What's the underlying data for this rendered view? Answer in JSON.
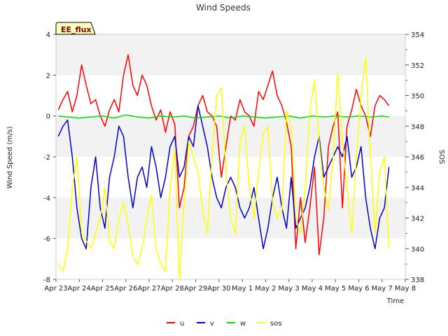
{
  "chart_data": {
    "type": "line",
    "title": "Wind Speeds",
    "badge": "EE_flux",
    "xlabel": "Time",
    "ylabel": "Wind Speed (m/s)",
    "y2label": "SOS",
    "x_tick_labels": [
      "Apr 23",
      "Apr 24",
      "Apr 25",
      "Apr 26",
      "Apr 27",
      "Apr 28",
      "Apr 29",
      "Apr 30",
      "May 1",
      "May 2",
      "May 3",
      "May 4",
      "May 5",
      "May 6",
      "May 7",
      "May 8"
    ],
    "xlim_days": [
      0,
      15
    ],
    "ylim": [
      -8,
      4
    ],
    "y_ticks": [
      4,
      2,
      0,
      -2,
      -4,
      -6,
      -8
    ],
    "y2lim": [
      338,
      354
    ],
    "y2_ticks": [
      354,
      352,
      350,
      348,
      346,
      344,
      342,
      340,
      338
    ],
    "grid_bands": true,
    "legend_position": "bottom-center",
    "series": [
      {
        "name": "u",
        "color": "#ff0000",
        "axis": "left",
        "x": [
          0.1,
          0.3,
          0.5,
          0.7,
          0.9,
          1.1,
          1.3,
          1.5,
          1.7,
          1.9,
          2.1,
          2.3,
          2.5,
          2.7,
          2.9,
          3.1,
          3.3,
          3.5,
          3.7,
          3.9,
          4.1,
          4.3,
          4.5,
          4.7,
          4.9,
          5.1,
          5.3,
          5.5,
          5.7,
          5.9,
          6.1,
          6.3,
          6.5,
          6.7,
          6.9,
          7.1,
          7.3,
          7.5,
          7.7,
          7.9,
          8.1,
          8.3,
          8.5,
          8.7,
          8.9,
          9.1,
          9.3,
          9.5,
          9.7,
          9.9,
          10.1,
          10.3,
          10.5,
          10.7,
          10.9,
          11.1,
          11.3,
          11.5,
          11.7,
          11.9,
          12.1,
          12.3,
          12.5,
          12.7,
          12.9,
          13.1,
          13.3,
          13.5,
          13.7,
          13.9,
          14.1,
          14.3
        ],
        "values": [
          0.3,
          0.8,
          1.2,
          0.2,
          1.0,
          2.5,
          1.5,
          0.6,
          0.8,
          0.0,
          -0.5,
          0.3,
          0.8,
          0.2,
          2.0,
          3.0,
          1.5,
          1.0,
          2.0,
          1.5,
          0.5,
          -0.2,
          0.3,
          -0.8,
          0.2,
          -0.4,
          -4.5,
          -3.5,
          -1.0,
          -0.5,
          0.5,
          1.0,
          0.2,
          0.0,
          -0.5,
          -3.0,
          -1.5,
          0.0,
          -0.2,
          0.8,
          0.2,
          0.0,
          -0.5,
          1.2,
          0.8,
          1.5,
          2.2,
          1.0,
          0.5,
          -0.3,
          -1.5,
          -6.5,
          -4.0,
          -6.2,
          -4.5,
          -2.5,
          -6.8,
          -5.0,
          -1.5,
          -0.5,
          0.2,
          -4.5,
          -0.5,
          0.3,
          1.3,
          0.5,
          0.0,
          -1.0,
          0.5,
          1.0,
          0.8,
          0.5
        ]
      },
      {
        "name": "v",
        "color": "#0000cc",
        "axis": "left",
        "x": [
          0.1,
          0.3,
          0.5,
          0.7,
          0.9,
          1.1,
          1.3,
          1.5,
          1.7,
          1.9,
          2.1,
          2.3,
          2.5,
          2.7,
          2.9,
          3.1,
          3.3,
          3.5,
          3.7,
          3.9,
          4.1,
          4.3,
          4.5,
          4.7,
          4.9,
          5.1,
          5.3,
          5.5,
          5.7,
          5.9,
          6.1,
          6.3,
          6.5,
          6.7,
          6.9,
          7.1,
          7.3,
          7.5,
          7.7,
          7.9,
          8.1,
          8.3,
          8.5,
          8.7,
          8.9,
          9.1,
          9.3,
          9.5,
          9.7,
          9.9,
          10.1,
          10.3,
          10.5,
          10.7,
          10.9,
          11.1,
          11.3,
          11.5,
          11.7,
          11.9,
          12.1,
          12.3,
          12.5,
          12.7,
          12.9,
          13.1,
          13.3,
          13.5,
          13.7,
          13.9,
          14.1,
          14.3
        ],
        "values": [
          -1.0,
          -0.5,
          -0.2,
          -2.0,
          -4.5,
          -6.0,
          -6.5,
          -3.5,
          -2.0,
          -4.5,
          -5.5,
          -3.0,
          -2.0,
          -0.5,
          -1.0,
          -3.0,
          -4.5,
          -3.0,
          -2.5,
          -3.5,
          -1.5,
          -2.5,
          -4.0,
          -3.0,
          -1.5,
          -1.0,
          -3.0,
          -2.5,
          -1.0,
          -1.5,
          0.5,
          -0.5,
          -1.5,
          -3.0,
          -4.0,
          -4.5,
          -3.5,
          -3.0,
          -3.5,
          -4.5,
          -5.0,
          -4.5,
          -3.5,
          -5.0,
          -6.5,
          -5.5,
          -4.0,
          -3.0,
          -4.5,
          -5.5,
          -3.0,
          -5.5,
          -5.0,
          -4.5,
          -3.5,
          -2.0,
          -1.0,
          -3.0,
          -2.5,
          -2.0,
          -1.5,
          -2.0,
          -1.0,
          -3.0,
          -2.5,
          -1.5,
          -4.0,
          -5.5,
          -6.5,
          -5.0,
          -4.5,
          -2.5
        ]
      },
      {
        "name": "w",
        "color": "#00e000",
        "axis": "left",
        "x": [
          0.1,
          0.5,
          1.0,
          1.5,
          2.0,
          2.5,
          3.0,
          3.5,
          4.0,
          4.5,
          5.0,
          5.5,
          6.0,
          6.5,
          7.0,
          7.5,
          8.0,
          8.5,
          9.0,
          9.5,
          10.0,
          10.5,
          11.0,
          11.5,
          12.0,
          12.5,
          13.0,
          13.5,
          14.0,
          14.3
        ],
        "values": [
          0.0,
          -0.05,
          -0.1,
          -0.05,
          0.0,
          -0.1,
          0.05,
          -0.05,
          -0.1,
          0.0,
          -0.05,
          0.0,
          -0.1,
          -0.05,
          0.0,
          -0.1,
          0.0,
          -0.05,
          -0.1,
          -0.05,
          0.0,
          -0.1,
          0.0,
          -0.05,
          0.0,
          -0.05,
          0.0,
          -0.05,
          0.0,
          -0.05
        ]
      },
      {
        "name": "sos",
        "color": "#ffff00",
        "axis": "right",
        "x": [
          0.1,
          0.3,
          0.5,
          0.7,
          0.9,
          1.1,
          1.3,
          1.5,
          1.7,
          1.9,
          2.1,
          2.3,
          2.5,
          2.7,
          2.9,
          3.1,
          3.3,
          3.5,
          3.7,
          3.9,
          4.1,
          4.3,
          4.5,
          4.7,
          4.9,
          5.1,
          5.3,
          5.5,
          5.7,
          5.9,
          6.1,
          6.3,
          6.5,
          6.7,
          6.9,
          7.1,
          7.3,
          7.5,
          7.7,
          7.9,
          8.1,
          8.3,
          8.5,
          8.7,
          8.9,
          9.1,
          9.3,
          9.5,
          9.7,
          9.9,
          10.1,
          10.3,
          10.5,
          10.7,
          10.9,
          11.1,
          11.3,
          11.5,
          11.7,
          11.9,
          12.1,
          12.3,
          12.5,
          12.7,
          12.9,
          13.1,
          13.3,
          13.5,
          13.7,
          13.9,
          14.1,
          14.3
        ],
        "values": [
          339.0,
          338.5,
          340.0,
          344.0,
          346.0,
          341.0,
          340.5,
          340.0,
          341.0,
          342.0,
          344.0,
          340.5,
          340.0,
          342.0,
          343.0,
          341.5,
          339.5,
          339.0,
          340.0,
          342.0,
          343.5,
          340.0,
          339.0,
          338.5,
          344.0,
          346.5,
          338.0,
          343.0,
          347.0,
          346.0,
          345.0,
          342.5,
          341.0,
          346.0,
          350.0,
          350.5,
          345.0,
          342.0,
          341.0,
          347.0,
          348.0,
          344.0,
          342.0,
          345.0,
          347.5,
          348.0,
          343.0,
          342.0,
          342.5,
          349.0,
          348.0,
          342.0,
          341.0,
          344.0,
          349.0,
          351.0,
          347.0,
          344.0,
          342.5,
          346.0,
          351.5,
          347.0,
          344.0,
          341.0,
          346.0,
          350.0,
          352.5,
          346.0,
          341.0,
          345.0,
          346.0,
          340.0
        ]
      }
    ]
  }
}
